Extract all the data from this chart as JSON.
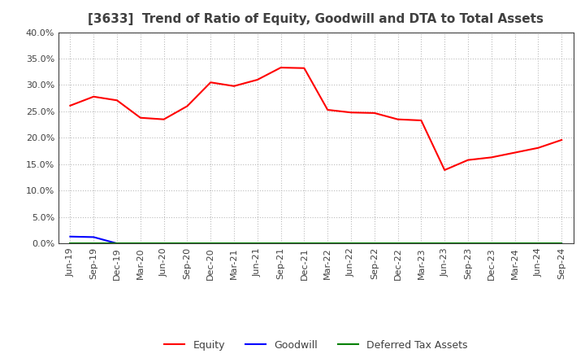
{
  "title": "[3633]  Trend of Ratio of Equity, Goodwill and DTA to Total Assets",
  "xlabels": [
    "Jun-19",
    "Sep-19",
    "Dec-19",
    "Mar-20",
    "Jun-20",
    "Sep-20",
    "Dec-20",
    "Mar-21",
    "Jun-21",
    "Sep-21",
    "Dec-21",
    "Mar-22",
    "Jun-22",
    "Sep-22",
    "Dec-22",
    "Mar-23",
    "Jun-23",
    "Sep-23",
    "Dec-23",
    "Mar-24",
    "Jun-24",
    "Sep-24"
  ],
  "equity": [
    0.261,
    0.278,
    0.271,
    0.238,
    0.235,
    0.26,
    0.305,
    0.298,
    0.31,
    0.333,
    0.332,
    0.253,
    0.248,
    0.247,
    0.235,
    0.233,
    0.139,
    0.158,
    0.163,
    0.172,
    0.181,
    0.196
  ],
  "goodwill": [
    0.013,
    0.012,
    0.0,
    0.0,
    0.0,
    0.0,
    0.0,
    0.0,
    0.0,
    0.0,
    0.0,
    0.0,
    0.0,
    0.0,
    0.0,
    0.0,
    0.0,
    0.0,
    0.0,
    0.0,
    0.0,
    0.0
  ],
  "dta": [
    0.0,
    0.0,
    0.0,
    0.0,
    0.0,
    0.0,
    0.0,
    0.0,
    0.0,
    0.0,
    0.0,
    0.0,
    0.0,
    0.0,
    0.0,
    0.0,
    0.0,
    0.0,
    0.0,
    0.0,
    0.0,
    0.0
  ],
  "equity_color": "#FF0000",
  "goodwill_color": "#0000FF",
  "dta_color": "#008000",
  "ylim": [
    0.0,
    0.4
  ],
  "yticks": [
    0.0,
    0.05,
    0.1,
    0.15,
    0.2,
    0.25,
    0.3,
    0.35,
    0.4
  ],
  "background_color": "#FFFFFF",
  "plot_bg_color": "#FFFFFF",
  "grid_color": "#BBBBBB",
  "title_fontsize": 11,
  "title_color": "#404040",
  "tick_fontsize": 8,
  "legend_labels": [
    "Equity",
    "Goodwill",
    "Deferred Tax Assets"
  ]
}
